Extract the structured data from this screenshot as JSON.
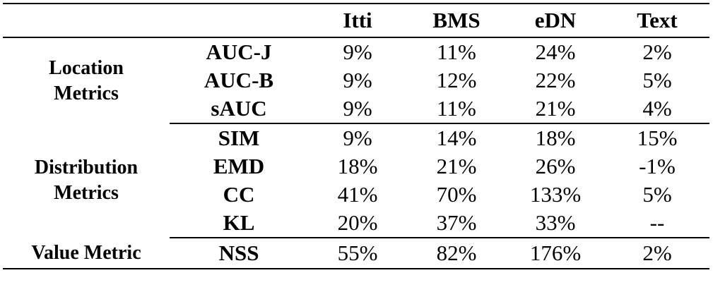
{
  "header": {
    "group": "",
    "metric": "",
    "columns": [
      "Itti",
      "BMS",
      "eDN",
      "Text"
    ]
  },
  "groups": [
    {
      "label_lines": [
        "Location",
        "Metrics"
      ],
      "rows": [
        {
          "metric": "AUC-J",
          "values": [
            "9%",
            "11%",
            "24%",
            "2%"
          ]
        },
        {
          "metric": "AUC-B",
          "values": [
            "9%",
            "12%",
            "22%",
            "5%"
          ]
        },
        {
          "metric": "sAUC",
          "values": [
            "9%",
            "11%",
            "21%",
            "4%"
          ]
        }
      ]
    },
    {
      "label_lines": [
        "Distribution",
        "Metrics"
      ],
      "rows": [
        {
          "metric": "SIM",
          "values": [
            "9%",
            "14%",
            "18%",
            "15%"
          ]
        },
        {
          "metric": "EMD",
          "values": [
            "18%",
            "21%",
            "26%",
            "-1%"
          ]
        },
        {
          "metric": "CC",
          "values": [
            "41%",
            "70%",
            "133%",
            "5%"
          ]
        },
        {
          "metric": "KL",
          "values": [
            "20%",
            "37%",
            "33%",
            "--"
          ]
        }
      ]
    },
    {
      "label_lines": [
        "Value Metric"
      ],
      "rows": [
        {
          "metric": "NSS",
          "values": [
            "55%",
            "82%",
            "176%",
            "2%"
          ]
        }
      ]
    }
  ]
}
